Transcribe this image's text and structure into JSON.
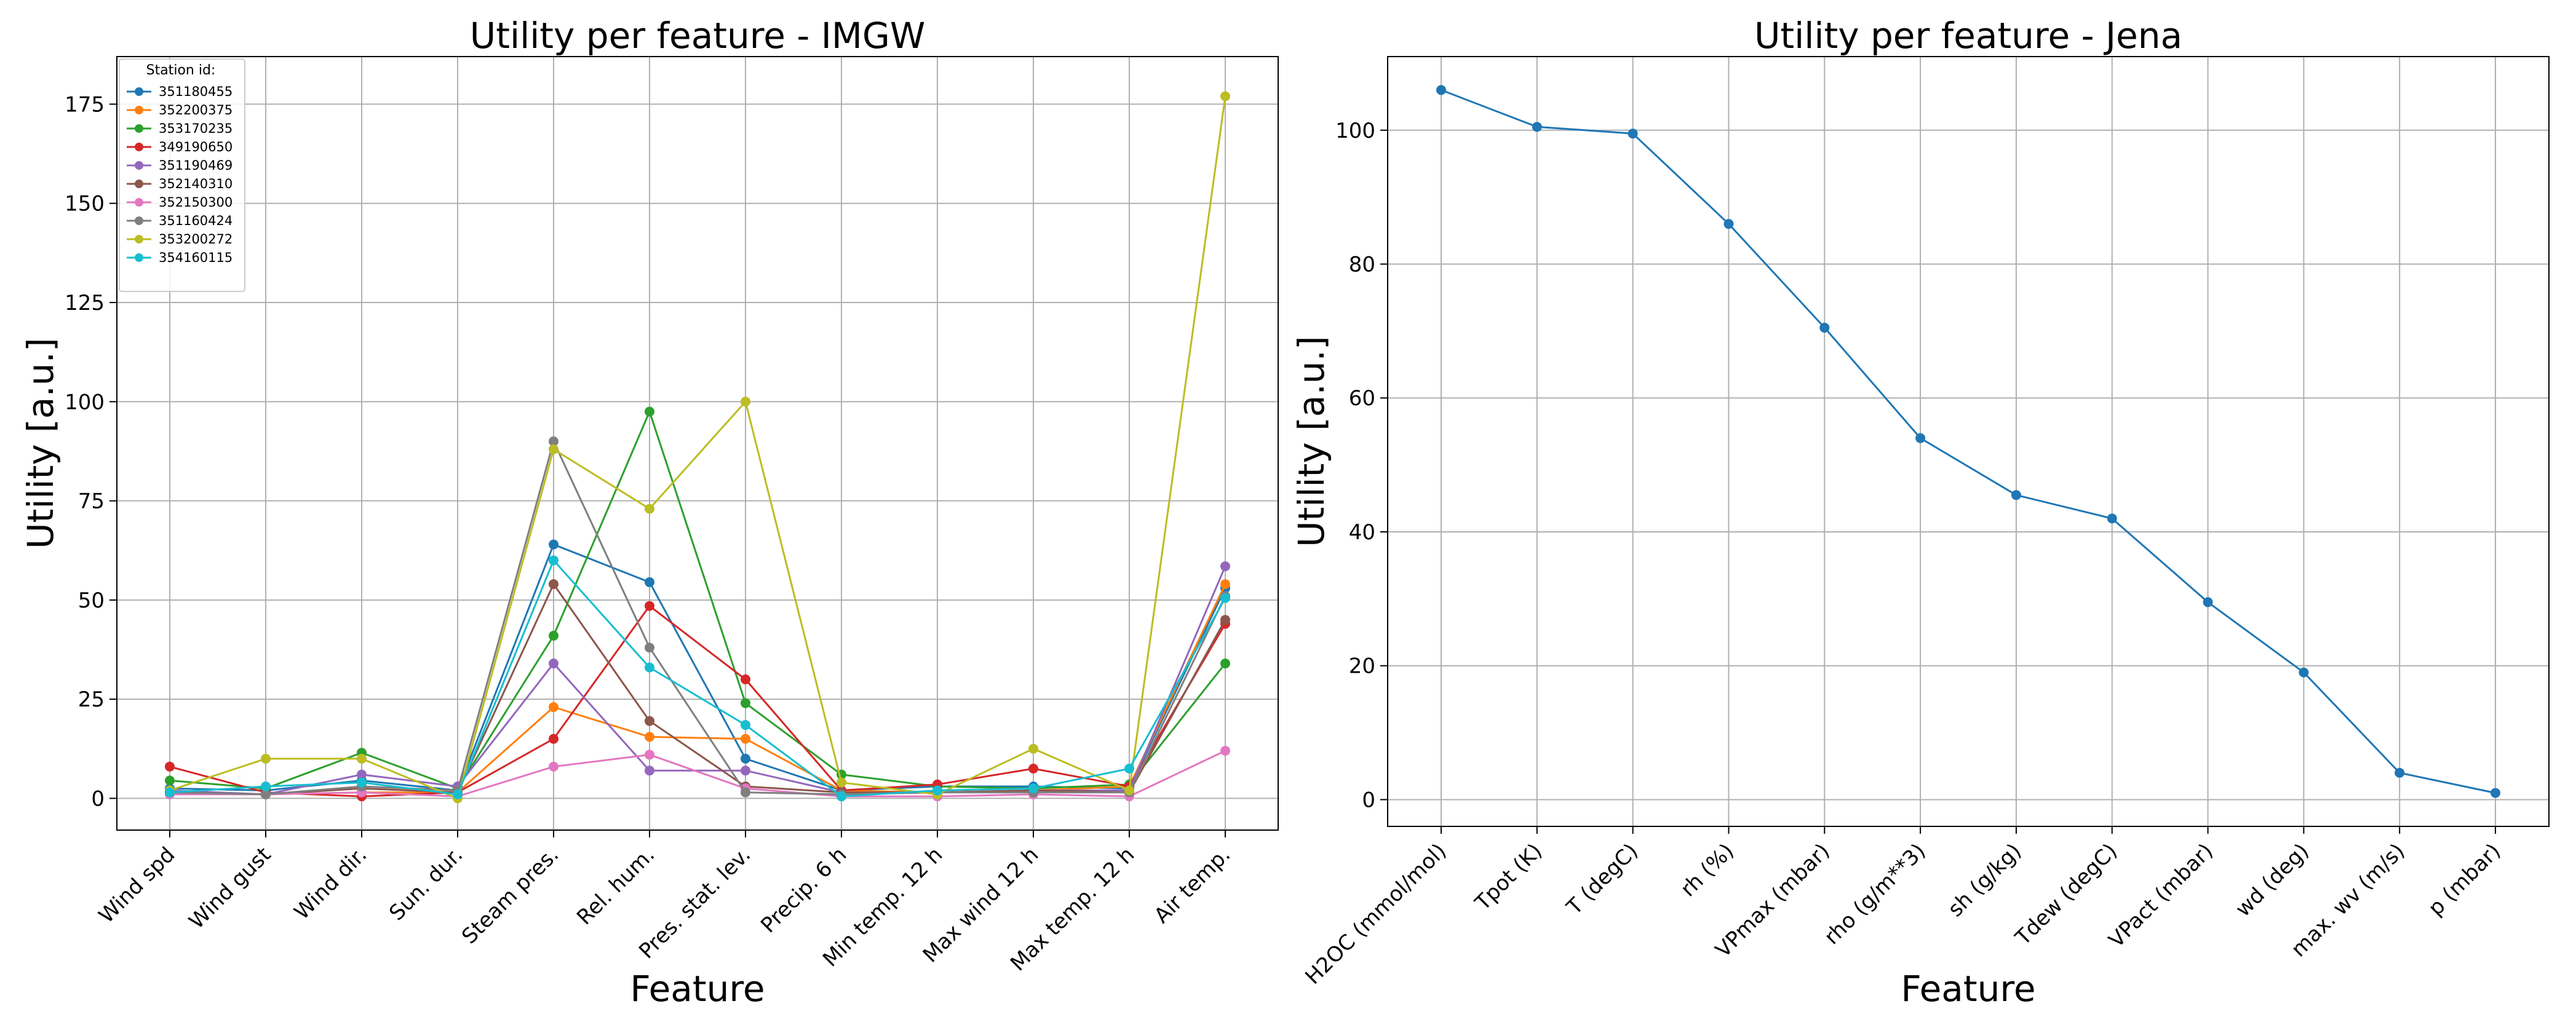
{
  "chart_data": [
    {
      "type": "line",
      "title": "Utility per feature - IMGW",
      "xlabel": "Feature",
      "ylabel": "Utility [a.u.]",
      "ylim": [
        -8,
        187
      ],
      "yticks": [
        0,
        25,
        50,
        75,
        100,
        125,
        150,
        175
      ],
      "grid": true,
      "legend_title": "Station id:",
      "legend_position": "top-left",
      "categories": [
        "Wind spd",
        "Wind gust",
        "Wind dir.",
        "Sun. dur.",
        "Steam pres.",
        "Rel. hum.",
        "Pres. stat. lev.",
        "Precip. 6 h",
        "Min temp. 12 h",
        "Max wind 12 h",
        "Max temp. 12 h",
        "Air temp."
      ],
      "series": [
        {
          "name": "351180455",
          "color": "#1f77b4",
          "values": [
            2.5,
            2,
            4.5,
            2,
            64,
            54.5,
            10,
            2,
            3,
            3,
            2.5,
            53
          ]
        },
        {
          "name": "352200375",
          "color": "#ff7f0e",
          "values": [
            1.5,
            1,
            1.5,
            1.5,
            23,
            15.5,
            15,
            2,
            1.5,
            2,
            3,
            54
          ]
        },
        {
          "name": "353170235",
          "color": "#2ca02c",
          "values": [
            4.5,
            2.5,
            11.5,
            2.5,
            41,
            97.5,
            24,
            6,
            3,
            2.5,
            3.5,
            34
          ]
        },
        {
          "name": "349190650",
          "color": "#d62728",
          "values": [
            8,
            1.5,
            0.5,
            1.5,
            15,
            48.5,
            30,
            2,
            3.5,
            7.5,
            3,
            44
          ]
        },
        {
          "name": "351190469",
          "color": "#9467bd",
          "values": [
            2,
            1,
            6,
            3,
            34,
            7,
            7,
            1.5,
            1.5,
            2,
            2,
            58.5
          ]
        },
        {
          "name": "352140310",
          "color": "#8c564b",
          "values": [
            1.5,
            1,
            2.5,
            1.5,
            54,
            19.5,
            3,
            1.5,
            1.5,
            2,
            1.5,
            45
          ]
        },
        {
          "name": "352150300",
          "color": "#e377c2",
          "values": [
            1,
            1,
            1.5,
            0.5,
            8,
            11,
            2.5,
            0.5,
            0.5,
            1,
            0.5,
            12
          ]
        },
        {
          "name": "351160424",
          "color": "#7f7f7f",
          "values": [
            1.5,
            1,
            3,
            2,
            90,
            38,
            1.5,
            1,
            1.5,
            1.5,
            1.5,
            51
          ]
        },
        {
          "name": "353200272",
          "color": "#bcbd22",
          "values": [
            2,
            10,
            10,
            0,
            88,
            73,
            100,
            4,
            1,
            12.5,
            2,
            177
          ]
        },
        {
          "name": "354160115",
          "color": "#17becf",
          "values": [
            1.5,
            3,
            4,
            1,
            60,
            33,
            18.5,
            0.5,
            2,
            2.5,
            7.5,
            50.5
          ]
        }
      ]
    },
    {
      "type": "line",
      "title": "Utility per feature - Jena",
      "xlabel": "Feature",
      "ylabel": "Utility [a.u.]",
      "ylim": [
        -4,
        111
      ],
      "yticks": [
        0,
        20,
        40,
        60,
        80,
        100
      ],
      "grid": true,
      "categories": [
        "H2OC (mmol/mol)",
        "Tpot (K)",
        "T (degC)",
        "rh (%)",
        "VPmax (mbar)",
        "rho (g/m**3)",
        "sh (g/kg)",
        "Tdew (degC)",
        "VPact (mbar)",
        "wd (deg)",
        "max. wv (m/s)",
        "p (mbar)"
      ],
      "series": [
        {
          "name": "utility",
          "color": "#1f77b4",
          "values": [
            106,
            100.5,
            99.5,
            86,
            70.5,
            54,
            45.5,
            42,
            29.5,
            19,
            4,
            1
          ]
        }
      ]
    }
  ]
}
